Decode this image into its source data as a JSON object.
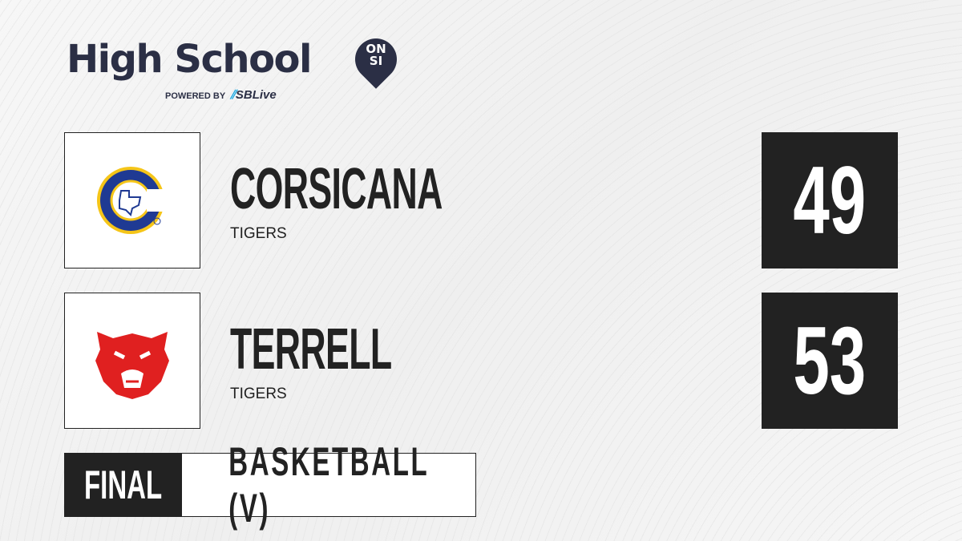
{
  "brand": {
    "title": "High School",
    "badge_line1": "ON",
    "badge_line2": "SI",
    "powered_by": "POWERED BY",
    "partner": "SBLive"
  },
  "teams": [
    {
      "name": "CORSICANA",
      "mascot": "TIGERS",
      "score": "49",
      "logo_colors": [
        "#1f3a93",
        "#f5c518"
      ]
    },
    {
      "name": "TERRELL",
      "mascot": "TIGERS",
      "score": "53",
      "logo_colors": [
        "#e02020"
      ]
    }
  ],
  "game": {
    "status": "FINAL",
    "sport": "BASKETBALL (V)"
  }
}
